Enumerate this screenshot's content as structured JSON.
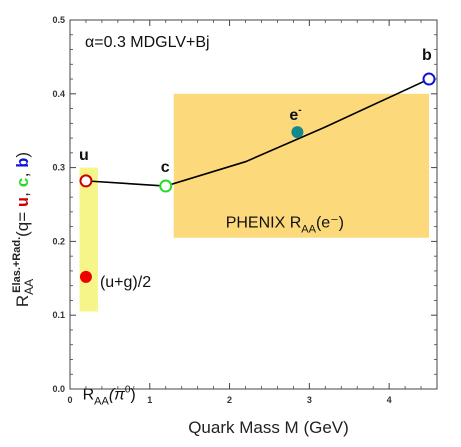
{
  "chart_data": {
    "type": "scatter",
    "title": "α=0.3 MDGLV+Bj",
    "xlabel": "Quark Mass M (GeV)",
    "ylabel": {
      "prefix": "R",
      "sub": "AA",
      "sup": "Elas.+Rad.",
      "paren_open": "(q= ",
      "q_labels": [
        "u",
        "c",
        "b"
      ],
      "separator": ", ",
      "paren_close": ")"
    },
    "xlim": [
      0,
      4.6
    ],
    "ylim": [
      0,
      0.5
    ],
    "xticks": [
      0,
      1,
      2,
      3,
      4
    ],
    "yticks": [
      0.0,
      0.1,
      0.2,
      0.3,
      0.4,
      0.5
    ],
    "ytick_labels": [
      "0.0",
      "0.1",
      "0.2",
      "0.3",
      "0.4",
      "0.5"
    ],
    "colors": {
      "u": "#cc0000",
      "c": "#22dd22",
      "b": "#1111dd",
      "electron": "#138a8a",
      "pion": "#ee0000",
      "phenix_band": "#fcd97a",
      "pion_band": "#f5f58a"
    },
    "series": [
      {
        "points": [
          {
            "x": 0.2,
            "y": 0.282
          },
          {
            "x": 1.2,
            "y": 0.275
          },
          {
            "x": 2.2,
            "y": 0.308
          },
          {
            "x": 3.2,
            "y": 0.355
          },
          {
            "x": 4.5,
            "y": 0.42
          }
        ]
      }
    ],
    "quark_points": [
      {
        "label": "u",
        "x": 0.2,
        "y": 0.282
      },
      {
        "label": "c",
        "x": 1.2,
        "y": 0.275
      },
      {
        "label": "b",
        "x": 4.5,
        "y": 0.42
      }
    ],
    "bands": [
      {
        "label_main": "PHENIX R",
        "label_sub": "AA",
        "label_tail": "(e⁻)",
        "x0": 1.3,
        "x1": 4.5,
        "y0": 0.205,
        "y1": 0.4
      },
      {
        "label_main": "R",
        "label_sub": "AA",
        "label_paren": "(π",
        "label_sup": "0",
        "label_close": ")",
        "x0": 0.12,
        "x1": 0.35,
        "y0": 0.105,
        "y1": 0.3
      }
    ],
    "markers": [
      {
        "label": "e",
        "label_sup": "-",
        "x": 2.85,
        "y": 0.348
      },
      {
        "label": "(u+g)/2",
        "x": 0.2,
        "y": 0.152
      }
    ]
  }
}
